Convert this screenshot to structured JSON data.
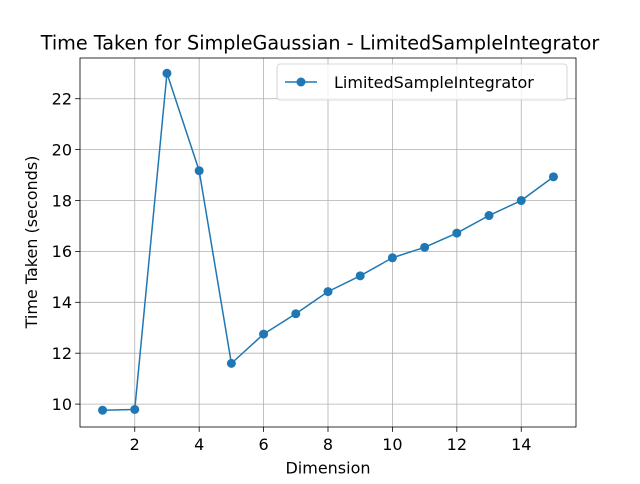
{
  "chart_data": {
    "type": "line",
    "title": "Time Taken for SimpleGaussian - LimitedSampleIntegrator",
    "xlabel": "Dimension",
    "ylabel": "Time Taken (seconds)",
    "xlim": [
      0.3,
      15.7
    ],
    "ylim": [
      9.1,
      23.6
    ],
    "xticks": [
      2,
      4,
      6,
      8,
      10,
      12,
      14
    ],
    "yticks": [
      10,
      12,
      14,
      16,
      18,
      20,
      22
    ],
    "grid": true,
    "legend_position": "upper right",
    "x": [
      1,
      2,
      3,
      4,
      5,
      6,
      7,
      8,
      9,
      10,
      11,
      12,
      13,
      14,
      15
    ],
    "series": [
      {
        "name": "LimitedSampleIntegrator",
        "color": "#1f77b4",
        "marker": "circle",
        "values": [
          9.76,
          9.79,
          23.0,
          19.17,
          11.6,
          12.75,
          13.55,
          14.42,
          15.04,
          15.75,
          16.16,
          16.72,
          17.41,
          18.0,
          18.93
        ]
      }
    ]
  }
}
